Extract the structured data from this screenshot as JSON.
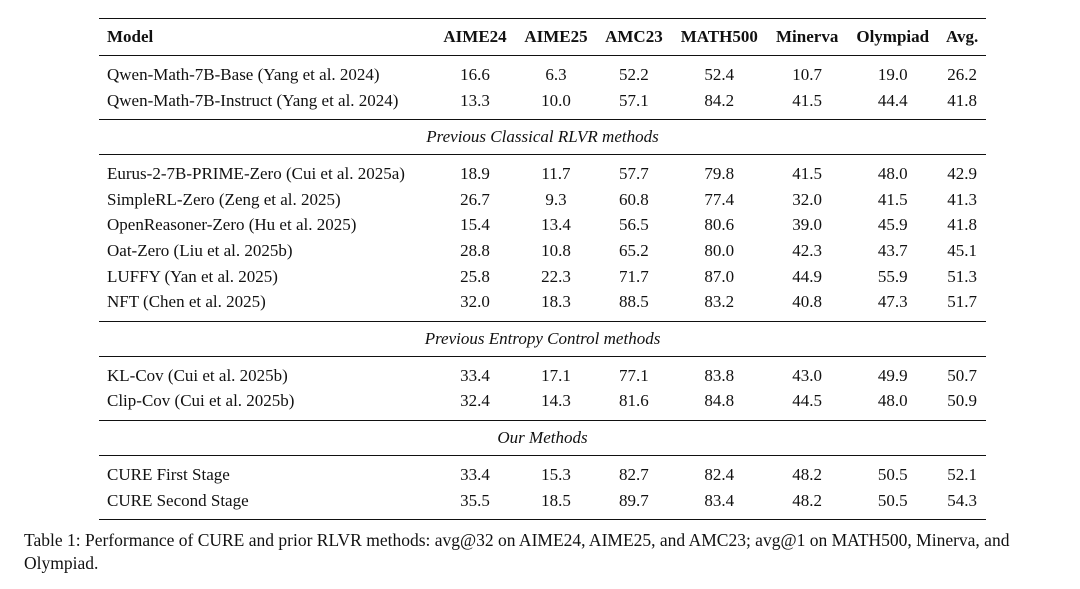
{
  "table": {
    "headers": [
      "Model",
      "AIME24",
      "AIME25",
      "AMC23",
      "MATH500",
      "Minerva",
      "Olympiad",
      "Avg."
    ],
    "groups": [
      {
        "section": "",
        "rows": [
          [
            "Qwen-Math-7B-Base (Yang et al. 2024)",
            "16.6",
            "6.3",
            "52.2",
            "52.4",
            "10.7",
            "19.0",
            "26.2"
          ],
          [
            "Qwen-Math-7B-Instruct (Yang et al. 2024)",
            "13.3",
            "10.0",
            "57.1",
            "84.2",
            "41.5",
            "44.4",
            "41.8"
          ]
        ]
      },
      {
        "section": "Previous Classical RLVR methods",
        "rows": [
          [
            "Eurus-2-7B-PRIME-Zero (Cui et al. 2025a)",
            "18.9",
            "11.7",
            "57.7",
            "79.8",
            "41.5",
            "48.0",
            "42.9"
          ],
          [
            "SimpleRL-Zero (Zeng et al. 2025)",
            "26.7",
            "9.3",
            "60.8",
            "77.4",
            "32.0",
            "41.5",
            "41.3"
          ],
          [
            "OpenReasoner-Zero (Hu et al. 2025)",
            "15.4",
            "13.4",
            "56.5",
            "80.6",
            "39.0",
            "45.9",
            "41.8"
          ],
          [
            "Oat-Zero (Liu et al. 2025b)",
            "28.8",
            "10.8",
            "65.2",
            "80.0",
            "42.3",
            "43.7",
            "45.1"
          ],
          [
            "LUFFY (Yan et al. 2025)",
            "25.8",
            "22.3",
            "71.7",
            "87.0",
            "44.9",
            "55.9",
            "51.3"
          ],
          [
            "NFT (Chen et al. 2025)",
            "32.0",
            "18.3",
            "88.5",
            "83.2",
            "40.8",
            "47.3",
            "51.7"
          ]
        ]
      },
      {
        "section": "Previous Entropy Control methods",
        "rows": [
          [
            "KL-Cov (Cui et al. 2025b)",
            "33.4",
            "17.1",
            "77.1",
            "83.8",
            "43.0",
            "49.9",
            "50.7"
          ],
          [
            "Clip-Cov (Cui et al. 2025b)",
            "32.4",
            "14.3",
            "81.6",
            "84.8",
            "44.5",
            "48.0",
            "50.9"
          ]
        ]
      },
      {
        "section": "Our Methods",
        "rows": [
          [
            "CURE First Stage",
            "33.4",
            "15.3",
            "82.7",
            "82.4",
            "48.2",
            "50.5",
            "52.1"
          ],
          [
            "CURE Second Stage",
            "35.5",
            "18.5",
            "89.7",
            "83.4",
            "48.2",
            "50.5",
            "54.3"
          ]
        ]
      }
    ]
  },
  "caption": "Table 1: Performance of CURE and prior RLVR methods: avg@32 on AIME24, AIME25, and AMC23; avg@1 on MATH500, Minerva, and Olympiad."
}
